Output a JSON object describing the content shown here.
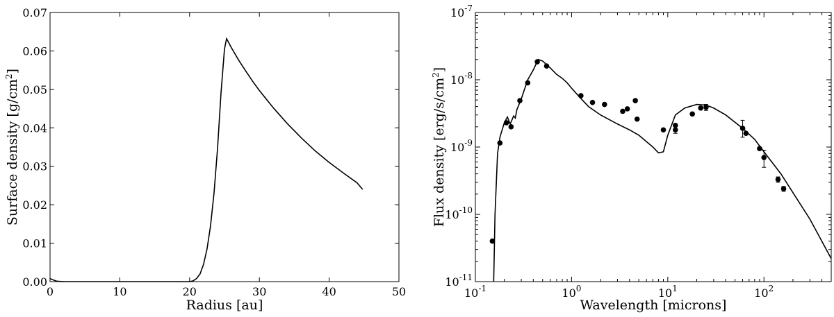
{
  "chart_data": [
    {
      "type": "line",
      "xlabel": "Radius [au]",
      "ylabel_main": "Surface density [g/cm",
      "ylabel_sup": "2",
      "ylabel_end": "]",
      "xlim": [
        0,
        50
      ],
      "ylim": [
        0,
        0.07
      ],
      "xticks": [
        0,
        10,
        20,
        30,
        40,
        50
      ],
      "xtick_labels": [
        "0",
        "10",
        "20",
        "30",
        "40",
        "50"
      ],
      "yticks": [
        0,
        0.01,
        0.02,
        0.03,
        0.04,
        0.05,
        0.06,
        0.07
      ],
      "ytick_labels": [
        "0.00",
        "0.01",
        "0.02",
        "0.03",
        "0.04",
        "0.05",
        "0.06",
        "0.07"
      ],
      "series": [
        {
          "x": [
            0,
            0.5,
            1,
            2,
            10,
            20,
            20.5,
            21,
            21.5,
            22,
            22.5,
            23,
            23.5,
            24,
            24.5,
            25.0,
            25.3,
            26,
            27,
            28,
            29,
            30,
            32,
            34,
            36,
            38,
            40,
            42,
            44,
            44.8
          ],
          "y": [
            0.0008,
            0.0004,
            0.0001,
            0,
            0,
            0,
            0.0002,
            0.0008,
            0.002,
            0.0045,
            0.0085,
            0.0145,
            0.023,
            0.0345,
            0.049,
            0.0605,
            0.0632,
            0.0608,
            0.0577,
            0.0549,
            0.0522,
            0.0497,
            0.0452,
            0.0411,
            0.0374,
            0.034,
            0.031,
            0.0283,
            0.0257,
            0.024
          ]
        }
      ]
    },
    {
      "type": "line",
      "xlabel": "Wavelength [microns]",
      "ylabel_main": "Flux density [erg/s/cm",
      "ylabel_sup": "2",
      "ylabel_end": "]",
      "xscale": "log",
      "yscale": "log",
      "xlim": [
        0.1,
        500
      ],
      "ylim": [
        1e-11,
        1e-07
      ],
      "xticks": [
        0.1,
        1,
        10,
        100
      ],
      "xtick_base": [
        "10",
        "10",
        "10",
        "10"
      ],
      "xtick_exp": [
        "-1",
        "0",
        "1",
        "2"
      ],
      "yticks": [
        1e-11,
        1e-10,
        1e-09,
        1e-08,
        1e-07
      ],
      "ytick_base": [
        "10",
        "10",
        "10",
        "10",
        "10"
      ],
      "ytick_exp": [
        "-11",
        "-10",
        "-9",
        "-8",
        "-7"
      ],
      "model": {
        "x": [
          0.155,
          0.16,
          0.17,
          0.18,
          0.2,
          0.215,
          0.23,
          0.25,
          0.26,
          0.27,
          0.3,
          0.35,
          0.4,
          0.45,
          0.5,
          0.6,
          0.7,
          0.8,
          0.9,
          1.0,
          1.2,
          1.5,
          2,
          3,
          4,
          5,
          7,
          8,
          9,
          10,
          12,
          15,
          20,
          25,
          30,
          40,
          60,
          80,
          100,
          150,
          200,
          300,
          500
        ],
        "y": [
          1e-11,
          1e-10,
          8e-10,
          1.4e-09,
          2.3e-09,
          2.8e-09,
          2.2e-09,
          2.9e-09,
          2.7e-09,
          3.6e-09,
          5.2e-09,
          1e-08,
          1.4e-08,
          2e-08,
          1.9e-08,
          1.5e-08,
          1.2e-08,
          1.05e-08,
          9e-09,
          7.5e-09,
          5.6e-09,
          4e-09,
          3e-09,
          2.2e-09,
          1.8e-09,
          1.5e-09,
          1e-09,
          8.2e-10,
          8.5e-10,
          1.5e-09,
          3e-09,
          3.8e-09,
          4.3e-09,
          4.2e-09,
          3.8e-09,
          3e-09,
          1.9e-09,
          1.3e-09,
          8.5e-10,
          4e-10,
          2.1e-10,
          8.5e-11,
          2.2e-11
        ]
      },
      "observations": {
        "x": [
          0.15,
          0.18,
          0.21,
          0.235,
          0.29,
          0.35,
          0.44,
          0.55,
          1.25,
          1.65,
          2.2,
          3.4,
          3.8,
          4.6,
          4.8,
          9,
          12,
          12,
          18,
          22,
          25,
          60,
          65,
          90,
          100,
          140,
          160
        ],
        "y": [
          4e-11,
          1.15e-09,
          2.3e-09,
          2e-09,
          4.9e-09,
          9e-09,
          1.85e-08,
          1.6e-08,
          5.8e-09,
          4.6e-09,
          4.3e-09,
          3.4e-09,
          3.7e-09,
          4.9e-09,
          2.6e-09,
          1.8e-09,
          2.1e-09,
          1.8e-09,
          3.1e-09,
          3.8e-09,
          3.9e-09,
          1.9e-09,
          1.6e-09,
          9.5e-10,
          7e-10,
          3.3e-10,
          2.4e-10
        ],
        "err_lo": [
          null,
          null,
          null,
          null,
          null,
          null,
          null,
          null,
          null,
          null,
          null,
          null,
          null,
          null,
          null,
          null,
          null,
          1.6e-09,
          null,
          null,
          3.5e-09,
          1.4e-09,
          null,
          null,
          5e-10,
          3e-10,
          2.2e-10
        ],
        "err_hi": [
          null,
          null,
          null,
          null,
          null,
          null,
          null,
          null,
          null,
          null,
          null,
          null,
          null,
          null,
          null,
          null,
          null,
          2e-09,
          null,
          null,
          4.3e-09,
          2.5e-09,
          null,
          null,
          9e-10,
          3.6e-10,
          2.6e-10
        ]
      }
    }
  ]
}
